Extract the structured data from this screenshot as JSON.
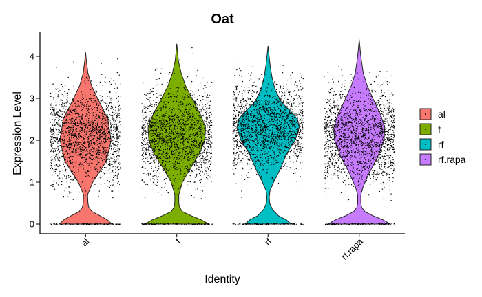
{
  "chart_data": {
    "type": "violin",
    "title": "Oat",
    "xlabel": "Identity",
    "ylabel": "Expression Level",
    "ylim": [
      0,
      4.4
    ],
    "yticks": [
      0,
      1,
      2,
      3,
      4
    ],
    "grid": false,
    "legend_position": "right",
    "categories": [
      "al",
      "f",
      "rf",
      "rf.rapa"
    ],
    "series": [
      {
        "name": "al",
        "color": "#F8766D",
        "max": 4.1,
        "density": [
          [
            0,
            0.66
          ],
          [
            0.1,
            0.55
          ],
          [
            0.2,
            0.36
          ],
          [
            0.3,
            0.16
          ],
          [
            0.4,
            0.08
          ],
          [
            0.5,
            0.06
          ],
          [
            0.7,
            0.05
          ],
          [
            1.0,
            0.18
          ],
          [
            1.2,
            0.32
          ],
          [
            1.5,
            0.52
          ],
          [
            2.0,
            0.64
          ],
          [
            2.5,
            0.56
          ],
          [
            3.0,
            0.3
          ],
          [
            3.3,
            0.15
          ],
          [
            3.6,
            0.06
          ],
          [
            3.9,
            0.02
          ],
          [
            4.1,
            0
          ]
        ]
      },
      {
        "name": "f",
        "color": "#7CAE00",
        "max": 4.3,
        "density": [
          [
            0,
            0.8
          ],
          [
            0.1,
            0.62
          ],
          [
            0.2,
            0.36
          ],
          [
            0.3,
            0.14
          ],
          [
            0.4,
            0.07
          ],
          [
            0.5,
            0.05
          ],
          [
            0.7,
            0.05
          ],
          [
            1.0,
            0.14
          ],
          [
            1.3,
            0.32
          ],
          [
            1.7,
            0.58
          ],
          [
            2.0,
            0.7
          ],
          [
            2.3,
            0.72
          ],
          [
            2.6,
            0.6
          ],
          [
            3.0,
            0.38
          ],
          [
            3.3,
            0.22
          ],
          [
            3.6,
            0.11
          ],
          [
            3.9,
            0.04
          ],
          [
            4.3,
            0
          ]
        ]
      },
      {
        "name": "rf",
        "color": "#00BFC4",
        "max": 4.25,
        "density": [
          [
            0,
            0.58
          ],
          [
            0.1,
            0.46
          ],
          [
            0.2,
            0.26
          ],
          [
            0.35,
            0.11
          ],
          [
            0.5,
            0.04
          ],
          [
            0.65,
            0.03
          ],
          [
            0.8,
            0.05
          ],
          [
            1.0,
            0.14
          ],
          [
            1.3,
            0.3
          ],
          [
            1.7,
            0.48
          ],
          [
            2.0,
            0.68
          ],
          [
            2.3,
            0.78
          ],
          [
            2.5,
            0.74
          ],
          [
            2.7,
            0.56
          ],
          [
            2.9,
            0.34
          ],
          [
            3.2,
            0.18
          ],
          [
            3.5,
            0.1
          ],
          [
            3.8,
            0.05
          ],
          [
            4.25,
            0
          ]
        ]
      },
      {
        "name": "rf.rapa",
        "color": "#C77CFF",
        "max": 4.4,
        "density": [
          [
            0,
            0.78
          ],
          [
            0.1,
            0.6
          ],
          [
            0.2,
            0.34
          ],
          [
            0.3,
            0.14
          ],
          [
            0.4,
            0.06
          ],
          [
            0.5,
            0.04
          ],
          [
            0.7,
            0.04
          ],
          [
            0.9,
            0.1
          ],
          [
            1.2,
            0.24
          ],
          [
            1.6,
            0.46
          ],
          [
            2.0,
            0.62
          ],
          [
            2.3,
            0.64
          ],
          [
            2.6,
            0.54
          ],
          [
            3.0,
            0.34
          ],
          [
            3.3,
            0.2
          ],
          [
            3.6,
            0.1
          ],
          [
            4.0,
            0.04
          ],
          [
            4.4,
            0
          ]
        ]
      }
    ]
  }
}
